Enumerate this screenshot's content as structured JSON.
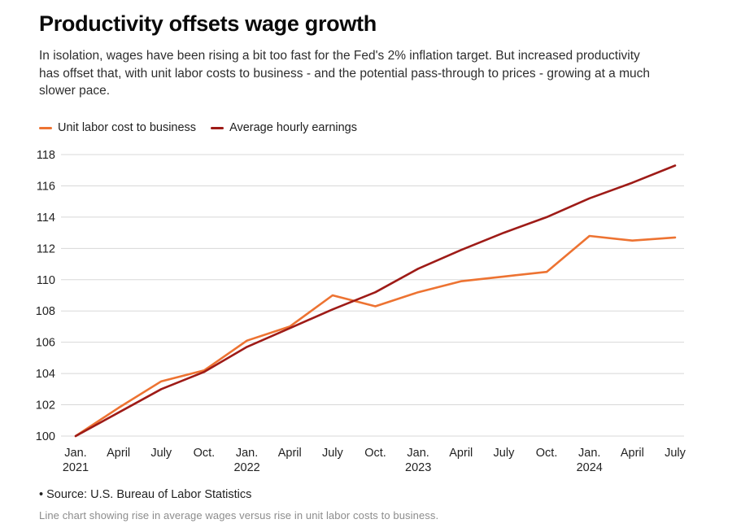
{
  "header": {
    "title": "Productivity offsets wage growth",
    "description": "In isolation, wages have been rising a bit too fast for the Fed's 2% inflation target. But increased productivity has offset that, with unit labor costs to business - and the potential pass-through to prices - growing at a much slower pace."
  },
  "footer": {
    "source": "• Source: U.S. Bureau of Labor Statistics",
    "caption": "Line chart showing rise in average wages versus rise in unit labor costs to business."
  },
  "colors": {
    "gridline": "#d8d8d8",
    "axis_text": "#222222",
    "unit_labor_cost": "#ED7332",
    "avg_hourly_earnings": "#9E1B17"
  },
  "chart_data": {
    "type": "line",
    "title": "Productivity offsets wage growth",
    "xlabel": "",
    "ylabel": "",
    "ylim": [
      100,
      118
    ],
    "ytick_step": 2,
    "grid": true,
    "legend_position": "top-left",
    "x_ticks": [
      {
        "month": "Jan.",
        "year": "2021"
      },
      {
        "month": "April"
      },
      {
        "month": "July"
      },
      {
        "month": "Oct."
      },
      {
        "month": "Jan.",
        "year": "2022"
      },
      {
        "month": "April"
      },
      {
        "month": "July"
      },
      {
        "month": "Oct."
      },
      {
        "month": "Jan.",
        "year": "2023"
      },
      {
        "month": "April"
      },
      {
        "month": "July"
      },
      {
        "month": "Oct."
      },
      {
        "month": "Jan.",
        "year": "2024"
      },
      {
        "month": "April"
      },
      {
        "month": "July"
      }
    ],
    "series": [
      {
        "name": "Unit labor cost to business",
        "color": "#ED7332",
        "values": [
          100.0,
          101.8,
          103.5,
          104.2,
          106.1,
          107.0,
          109.0,
          108.3,
          109.2,
          109.9,
          110.2,
          110.5,
          112.8,
          112.5,
          112.7
        ]
      },
      {
        "name": "Average hourly earnings",
        "color": "#9E1B17",
        "values": [
          100.0,
          101.5,
          103.0,
          104.1,
          105.7,
          106.9,
          108.1,
          109.2,
          110.7,
          111.9,
          113.0,
          114.0,
          115.2,
          116.2,
          117.3
        ]
      }
    ]
  }
}
